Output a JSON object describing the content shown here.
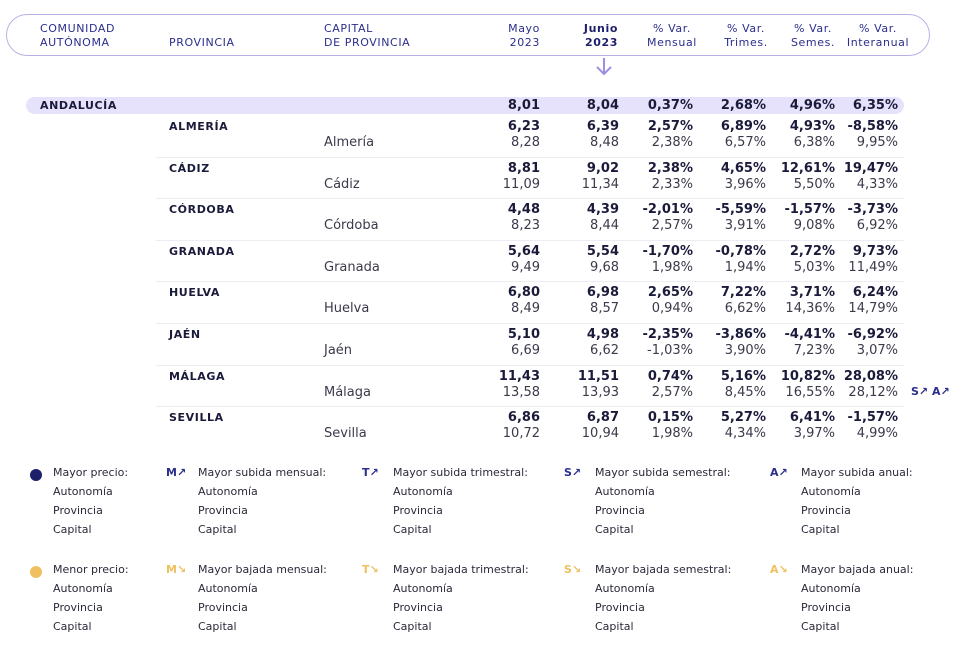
{
  "header": {
    "col_ccaa": [
      "COMUNIDAD",
      "AUTÓNOMA"
    ],
    "col_prov": "PROVINCIA",
    "col_cap": [
      "CAPITAL",
      "DE PROVINCIA"
    ],
    "col_prev": [
      "Mayo",
      "2023"
    ],
    "col_cur": [
      "Junio",
      "2023"
    ],
    "col_m": [
      "% Var.",
      "Mensual"
    ],
    "col_t": [
      "% Var.",
      "Trimes."
    ],
    "col_s": [
      "% Var.",
      "Semes."
    ],
    "col_a": [
      "% Var.",
      "Interanual"
    ]
  },
  "region": {
    "name": "ANDALUCÍA",
    "values": [
      "8,01",
      "8,04",
      "0,37%",
      "2,68%",
      "4,96%",
      "6,35%"
    ]
  },
  "rows": [
    {
      "prov": "ALMERÍA",
      "cap": "Almería",
      "p": [
        "6,23",
        "6,39",
        "2,57%",
        "6,89%",
        "4,93%",
        "-8,58%"
      ],
      "c": [
        "8,28",
        "8,48",
        "2,38%",
        "6,57%",
        "6,38%",
        "9,95%"
      ]
    },
    {
      "prov": "CÁDIZ",
      "cap": "Cádiz",
      "p": [
        "8,81",
        "9,02",
        "2,38%",
        "4,65%",
        "12,61%",
        "19,47%"
      ],
      "c": [
        "11,09",
        "11,34",
        "2,33%",
        "3,96%",
        "5,50%",
        "4,33%"
      ]
    },
    {
      "prov": "CÓRDOBA",
      "cap": "Córdoba",
      "p": [
        "4,48",
        "4,39",
        "-2,01%",
        "-5,59%",
        "-1,57%",
        "-3,73%"
      ],
      "c": [
        "8,23",
        "8,44",
        "2,57%",
        "3,91%",
        "9,08%",
        "6,92%"
      ]
    },
    {
      "prov": "GRANADA",
      "cap": "Granada",
      "p": [
        "5,64",
        "5,54",
        "-1,70%",
        "-0,78%",
        "2,72%",
        "9,73%"
      ],
      "c": [
        "9,49",
        "9,68",
        "1,98%",
        "1,94%",
        "5,03%",
        "11,49%"
      ]
    },
    {
      "prov": "HUELVA",
      "cap": "Huelva",
      "p": [
        "6,80",
        "6,98",
        "2,65%",
        "7,22%",
        "3,71%",
        "6,24%"
      ],
      "c": [
        "8,49",
        "8,57",
        "0,94%",
        "6,62%",
        "14,36%",
        "14,79%"
      ]
    },
    {
      "prov": "JAÉN",
      "cap": "Jaén",
      "p": [
        "5,10",
        "4,98",
        "-2,35%",
        "-3,86%",
        "-4,41%",
        "-6,92%"
      ],
      "c": [
        "6,69",
        "6,62",
        "-1,03%",
        "3,90%",
        "7,23%",
        "3,07%"
      ]
    },
    {
      "prov": "MÁLAGA",
      "cap": "Málaga",
      "p": [
        "11,43",
        "11,51",
        "0,74%",
        "5,16%",
        "10,82%",
        "28,08%"
      ],
      "c": [
        "13,58",
        "13,93",
        "2,57%",
        "8,45%",
        "16,55%",
        "28,12%"
      ]
    },
    {
      "prov": "SEVILLA",
      "cap": "Sevilla",
      "p": [
        "6,86",
        "6,87",
        "0,15%",
        "5,27%",
        "6,41%",
        "-1,57%"
      ],
      "c": [
        "10,72",
        "10,94",
        "1,98%",
        "4,34%",
        "3,97%",
        "4,99%"
      ]
    }
  ],
  "malaga_badge": "S↗ A↗",
  "legend": {
    "up": [
      {
        "icon": "●",
        "title": "Mayor precio:",
        "items": [
          "Autonomía",
          "Provincia",
          "Capital"
        ]
      },
      {
        "icon": "M↗",
        "title": "Mayor subida mensual:",
        "items": [
          "Autonomía",
          "Provincia",
          "Capital"
        ]
      },
      {
        "icon": "T↗",
        "title": "Mayor subida trimestral:",
        "items": [
          "Autonomía",
          "Provincia",
          "Capital"
        ]
      },
      {
        "icon": "S↗",
        "title": "Mayor subida semestral:",
        "items": [
          "Autonomía",
          "Provincia",
          "Capital"
        ]
      },
      {
        "icon": "A↗",
        "title": "Mayor subida anual:",
        "items": [
          "Autonomía",
          "Provincia",
          "Capital"
        ]
      }
    ],
    "down": [
      {
        "icon": "●",
        "title": "Menor precio:",
        "items": [
          "Autonomía",
          "Provincia",
          "Capital"
        ]
      },
      {
        "icon": "M↘",
        "title": "Mayor bajada mensual:",
        "items": [
          "Autonomía",
          "Provincia",
          "Capital"
        ]
      },
      {
        "icon": "T↘",
        "title": "Mayor bajada trimestral:",
        "items": [
          "Autonomía",
          "Provincia",
          "Capital"
        ]
      },
      {
        "icon": "S↘",
        "title": "Mayor bajada semestral:",
        "items": [
          "Autonomía",
          "Provincia",
          "Capital"
        ]
      },
      {
        "icon": "A↘",
        "title": "Mayor bajada anual:",
        "items": [
          "Autonomía",
          "Provincia",
          "Capital"
        ]
      }
    ]
  },
  "colors": {
    "accent": "#2b2e8c",
    "band": "#e6e2fb",
    "gold": "#f0c060",
    "navy": "#1e1f6b"
  }
}
